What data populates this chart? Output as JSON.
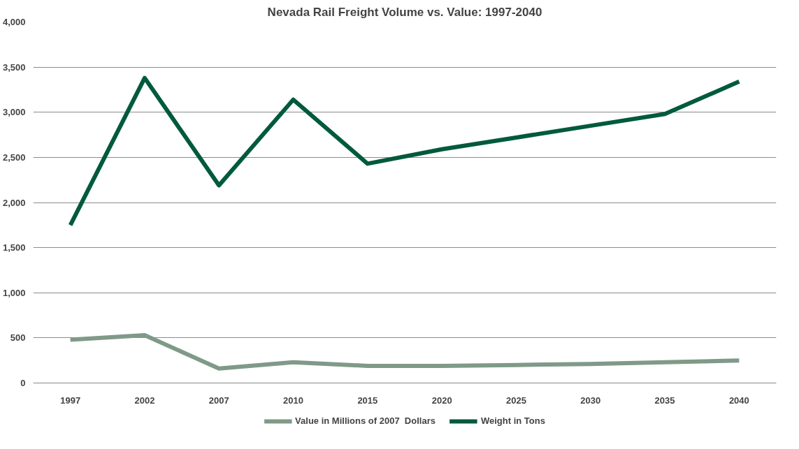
{
  "chart_data": {
    "type": "line",
    "title": "Nevada Rail Freight Volume vs. Value: 1997-2040",
    "categories": [
      "1997",
      "2002",
      "2007",
      "2010",
      "2015",
      "2020",
      "2025",
      "2030",
      "2035",
      "2040"
    ],
    "series": [
      {
        "name": "Value in Millions of 2007  Dollars",
        "color": "#7f9a88",
        "values": [
          480,
          530,
          160,
          230,
          190,
          190,
          200,
          210,
          230,
          250
        ]
      },
      {
        "name": "Weight in Tons",
        "color": "#005a3c",
        "values": [
          1750,
          3380,
          2190,
          3140,
          2430,
          2590,
          2720,
          2850,
          2980,
          3340
        ]
      }
    ],
    "ylim": [
      0,
      4000
    ],
    "yticks": [
      {
        "value": 0,
        "label": "0"
      },
      {
        "value": 500,
        "label": "500"
      },
      {
        "value": 1000,
        "label": "1,000"
      },
      {
        "value": 1500,
        "label": "1,500"
      },
      {
        "value": 2000,
        "label": "2,000"
      },
      {
        "value": 2500,
        "label": "2,500"
      },
      {
        "value": 3000,
        "label": "3,000"
      },
      {
        "value": 3500,
        "label": "3,500"
      },
      {
        "value": 4000,
        "label": "4,000"
      }
    ],
    "grid": "y",
    "legend": "bottom",
    "marker": "none",
    "line_style": "solid"
  }
}
